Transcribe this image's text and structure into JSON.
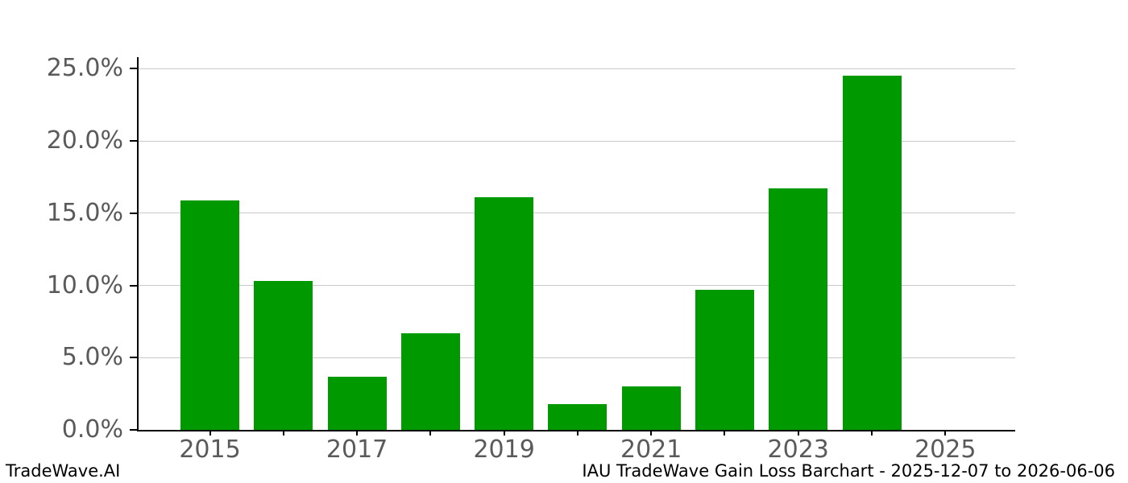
{
  "figure": {
    "background": "#ffffff"
  },
  "footer": {
    "left": "TradeWave.AI",
    "right": "IAU TradeWave Gain Loss Barchart - 2025-12-07 to 2026-06-06"
  },
  "chart_data": {
    "type": "bar",
    "title": "",
    "x": [
      2015,
      2016,
      2017,
      2018,
      2019,
      2020,
      2021,
      2022,
      2023,
      2024
    ],
    "values": [
      15.9,
      10.3,
      3.7,
      6.7,
      16.1,
      1.8,
      3.0,
      9.7,
      16.7,
      24.5
    ],
    "unit": "%",
    "xlabel": "",
    "ylabel": "",
    "bar_color": "#009900",
    "bar_width_years": 0.8,
    "ylim": [
      0,
      25.8
    ],
    "yticks": [
      0,
      5,
      10,
      15,
      20,
      25
    ],
    "ytick_labels": [
      "0.0%",
      "5.0%",
      "10.0%",
      "15.0%",
      "20.0%",
      "25.0%"
    ],
    "xlim": [
      2014.03,
      2025.95
    ],
    "xticks": [
      2015,
      2016,
      2017,
      2018,
      2019,
      2020,
      2021,
      2022,
      2023,
      2024,
      2025
    ],
    "xtick_labeled": [
      2015,
      2017,
      2019,
      2021,
      2023,
      2025
    ],
    "grid": "horizontal-y",
    "legend": "none",
    "axis_color": "#000000",
    "grid_color": "#c8c8c8",
    "tick_label_color": "#5a5a5a"
  }
}
